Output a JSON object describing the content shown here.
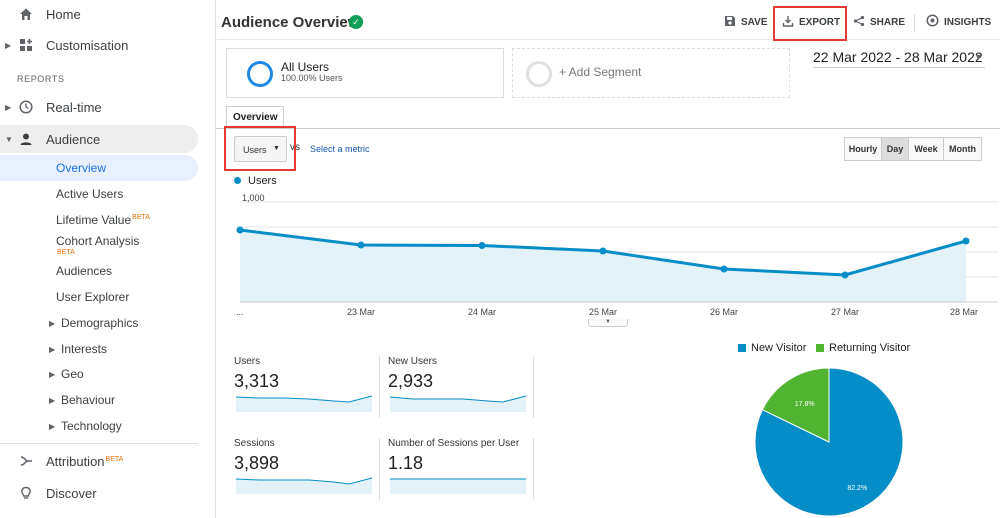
{
  "sidebar": {
    "home": "Home",
    "customisation": "Customisation",
    "reports_header": "REPORTS",
    "realtime": "Real-time",
    "audience": "Audience",
    "audience_items": [
      {
        "label": "Overview"
      },
      {
        "label": "Active Users"
      },
      {
        "label": "Lifetime Value",
        "badge": "BETA"
      },
      {
        "label": "Cohort Analysis",
        "badge": "BETA"
      },
      {
        "label": "Audiences"
      },
      {
        "label": "User Explorer"
      },
      {
        "label": "Demographics"
      },
      {
        "label": "Interests"
      },
      {
        "label": "Geo"
      },
      {
        "label": "Behaviour"
      },
      {
        "label": "Technology"
      }
    ],
    "attribution": "Attribution",
    "attribution_badge": "BETA",
    "discover": "Discover"
  },
  "header": {
    "title": "Audience Overview",
    "save": "SAVE",
    "export": "EXPORT",
    "share": "SHARE",
    "insights": "INSIGHTS"
  },
  "segments": {
    "active_name": "All Users",
    "active_pct": "100.00% Users",
    "add": "+ Add Segment"
  },
  "date_range": "22 Mar 2022 - 28 Mar 2022",
  "tabs": {
    "overview": "Overview"
  },
  "metric_selector": {
    "value": "Users",
    "vs": "vs",
    "select_metric": "Select a metric"
  },
  "granularity": {
    "hourly": "Hourly",
    "day": "Day",
    "week": "Week",
    "month": "Month",
    "selected": "Day"
  },
  "chart_data": [
    {
      "type": "line",
      "series": [
        {
          "name": "Users",
          "values": [
            720,
            570,
            565,
            510,
            330,
            270,
            610
          ]
        }
      ],
      "x": [
        "...",
        "23 Mar",
        "24 Mar",
        "25 Mar",
        "26 Mar",
        "27 Mar",
        "28 Mar"
      ],
      "yticks": [
        "1,000",
        "500"
      ],
      "ylim": [
        0,
        1000
      ],
      "color": "#058dc7"
    },
    {
      "type": "pie",
      "legend": [
        "New Visitor",
        "Returning Visitor"
      ],
      "values": [
        82.2,
        17.8
      ],
      "labels": [
        "82.2%",
        "17.8%"
      ],
      "colors": [
        "#058dc7",
        "#50b432"
      ]
    }
  ],
  "metrics": [
    {
      "name": "Users",
      "value": "3,313"
    },
    {
      "name": "New Users",
      "value": "2,933"
    },
    {
      "name": "Sessions",
      "value": "3,898"
    },
    {
      "name": "Number of Sessions per User",
      "value": "1.18"
    }
  ]
}
